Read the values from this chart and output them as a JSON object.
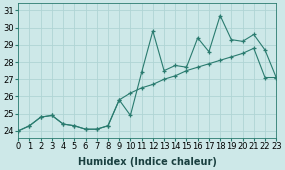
{
  "xlabel": "Humidex (Indice chaleur)",
  "x_values": [
    0,
    1,
    2,
    3,
    4,
    5,
    6,
    7,
    8,
    9,
    10,
    11,
    12,
    13,
    14,
    15,
    16,
    17,
    18,
    19,
    20,
    21,
    22,
    23
  ],
  "line1_y": [
    24.0,
    24.3,
    24.8,
    24.9,
    24.4,
    24.3,
    24.1,
    24.1,
    24.3,
    25.8,
    24.9,
    27.4,
    29.8,
    27.5,
    27.8,
    27.7,
    29.4,
    28.6,
    30.7,
    29.3,
    29.2,
    29.6,
    28.7,
    27.1
  ],
  "line2_y": [
    24.0,
    24.3,
    24.8,
    24.9,
    24.4,
    24.3,
    24.1,
    24.1,
    24.3,
    25.8,
    26.2,
    26.5,
    26.7,
    27.0,
    27.2,
    27.5,
    27.7,
    27.9,
    28.1,
    28.3,
    28.5,
    28.8,
    27.1,
    27.1
  ],
  "line_color": "#2a7b6f",
  "bg_color": "#cde8e8",
  "plot_bg_color": "#cde8e8",
  "xlim": [
    0,
    23
  ],
  "ylim": [
    23.6,
    31.4
  ],
  "yticks": [
    24,
    25,
    26,
    27,
    28,
    29,
    30,
    31
  ],
  "xticks": [
    0,
    1,
    2,
    3,
    4,
    5,
    6,
    7,
    8,
    9,
    10,
    11,
    12,
    13,
    14,
    15,
    16,
    17,
    18,
    19,
    20,
    21,
    22,
    23
  ],
  "grid_color": "#b0d4d4",
  "tick_fontsize": 6.0,
  "xlabel_fontsize": 7.0
}
